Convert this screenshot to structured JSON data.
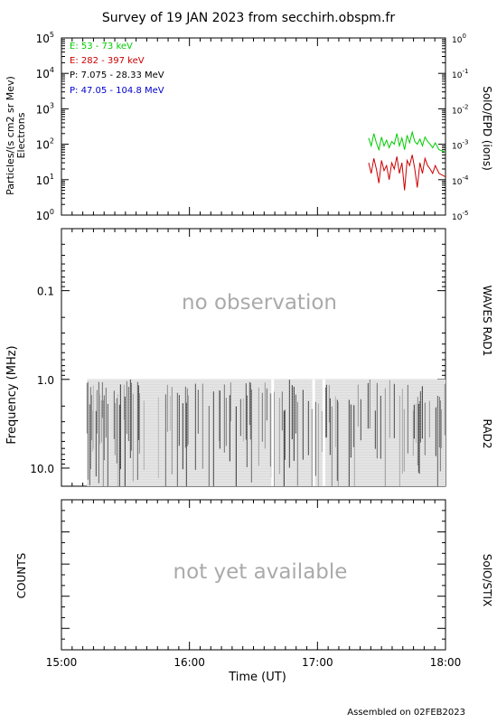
{
  "title": "Survey of 19 JAN 2023 from secchirh.obspm.fr",
  "footer": "Assembled on 02FEB2023",
  "colors": {
    "green": "#00cc00",
    "red": "#cc0000",
    "blue": "#0000cc",
    "black": "#000000",
    "grey_text": "#aaaaaa"
  },
  "chart_data": [
    {
      "type": "line",
      "panel": "particles",
      "ylabel_left": "Particles/(s cm2 sr Mev)",
      "ylabel_left2": "Electrons",
      "ylabel_right": "SolO/EPD (ions)",
      "yscale": "log",
      "ylim_left": [
        1,
        100000
      ],
      "ylim_right": [
        1e-05,
        1
      ],
      "left_ticks": [
        {
          "base": "10",
          "exp": "0"
        },
        {
          "base": "10",
          "exp": "1"
        },
        {
          "base": "10",
          "exp": "2"
        },
        {
          "base": "10",
          "exp": "3"
        },
        {
          "base": "10",
          "exp": "4"
        },
        {
          "base": "10",
          "exp": "5"
        }
      ],
      "right_ticks": [
        {
          "base": "10",
          "exp": "-5"
        },
        {
          "base": "10",
          "exp": "-4"
        },
        {
          "base": "10",
          "exp": "-3"
        },
        {
          "base": "10",
          "exp": "-2"
        },
        {
          "base": "10",
          "exp": "-1"
        },
        {
          "base": "10",
          "exp": "0"
        }
      ],
      "legend": [
        {
          "label": "E: 53 - 73 keV",
          "color": "#00cc00"
        },
        {
          "label": "E: 282 - 397 keV",
          "color": "#cc0000"
        },
        {
          "label": "P: 7.075 - 28.33 MeV",
          "color": "#000000"
        },
        {
          "label": "P: 47.05 - 104.8 MeV",
          "color": "#0000cc"
        }
      ],
      "series": [
        {
          "name": "E: 53 - 73 keV",
          "color": "#00cc00",
          "x": [
            17.4,
            17.42,
            17.44,
            17.46,
            17.48,
            17.5,
            17.52,
            17.54,
            17.56,
            17.58,
            17.6,
            17.62,
            17.64,
            17.66,
            17.68,
            17.7,
            17.72,
            17.74,
            17.76,
            17.78,
            17.8,
            17.82,
            17.84,
            17.86,
            17.88,
            17.9,
            17.92,
            17.95,
            18.0
          ],
          "y": [
            150,
            90,
            200,
            110,
            70,
            160,
            90,
            130,
            80,
            120,
            100,
            200,
            90,
            150,
            70,
            180,
            110,
            220,
            120,
            100,
            140,
            90,
            160,
            120,
            100,
            80,
            110,
            70,
            60
          ]
        },
        {
          "name": "E: 282 - 397 keV",
          "color": "#cc0000",
          "x": [
            17.4,
            17.42,
            17.44,
            17.46,
            17.48,
            17.5,
            17.52,
            17.54,
            17.56,
            17.58,
            17.6,
            17.62,
            17.64,
            17.66,
            17.68,
            17.7,
            17.72,
            17.74,
            17.76,
            17.78,
            17.8,
            17.82,
            17.84,
            17.86,
            17.88,
            17.9,
            17.92,
            17.95,
            18.0
          ],
          "y": [
            30,
            15,
            40,
            20,
            8,
            35,
            18,
            25,
            10,
            30,
            20,
            45,
            15,
            30,
            5,
            35,
            25,
            50,
            20,
            6,
            30,
            15,
            40,
            25,
            20,
            15,
            25,
            15,
            12
          ]
        }
      ]
    },
    {
      "type": "heatmap",
      "panel": "radio",
      "ylabel": "Frequency (MHz)",
      "yscale": "log-reversed",
      "ylim": [
        0.02,
        16
      ],
      "yticks": [
        "0.1",
        "1.0",
        "10.0"
      ],
      "labels_right": [
        "WAVES RAD1",
        "RAD2"
      ],
      "annotation": "no observation",
      "data_x_range": [
        15.2,
        18.0
      ],
      "data_y_range": [
        1.0,
        16
      ],
      "gaps_x": [
        16.65,
        16.97,
        17.05
      ]
    },
    {
      "type": "line",
      "panel": "stix",
      "ylabel": "COUNTS",
      "label_right": "SolO/STIX",
      "annotation": "not yet available"
    }
  ],
  "xaxis": {
    "label": "Time (UT)",
    "range": [
      15.0,
      18.0
    ],
    "ticks": [
      {
        "value": 15.0,
        "label": "15:00"
      },
      {
        "value": 16.0,
        "label": "16:00"
      },
      {
        "value": 17.0,
        "label": "17:00"
      },
      {
        "value": 18.0,
        "label": "18:00"
      }
    ]
  }
}
